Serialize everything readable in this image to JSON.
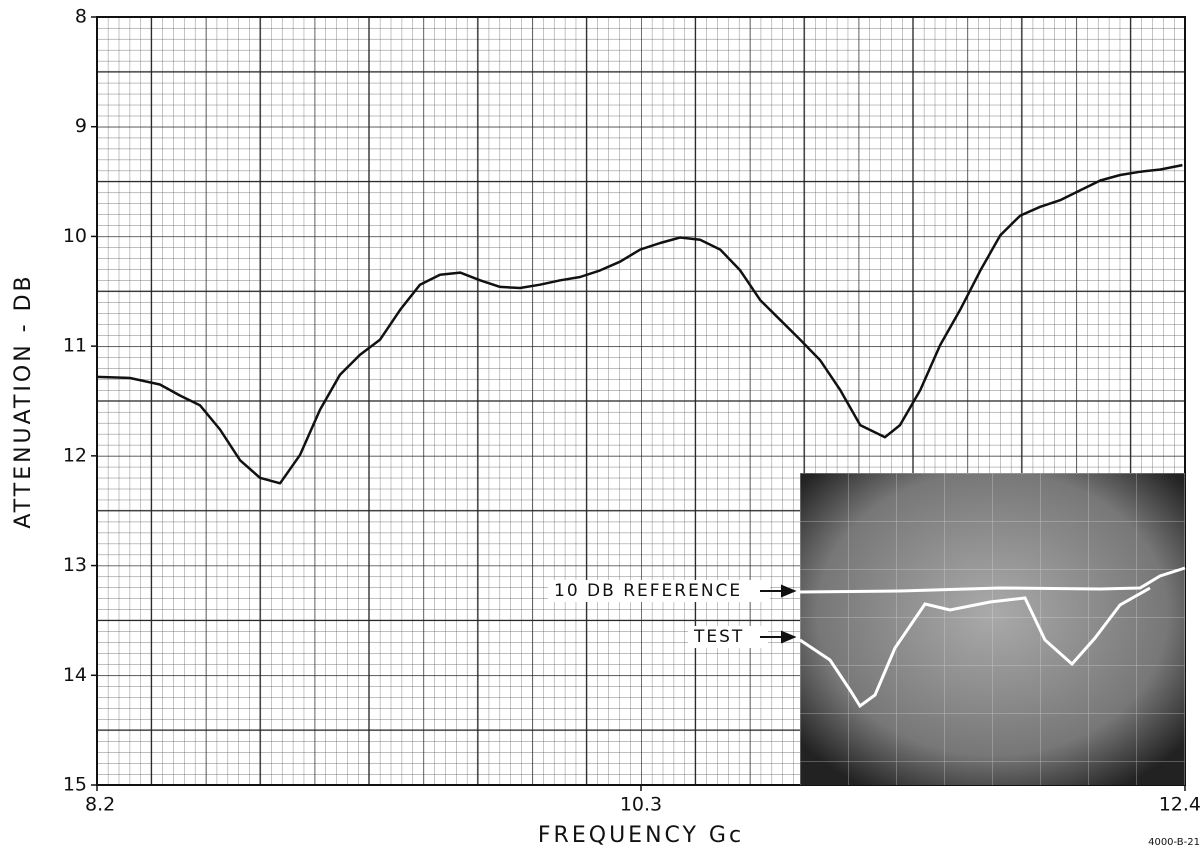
{
  "chart_data": {
    "type": "line",
    "xlabel": "FREQUENCY Gc",
    "ylabel": "ATTENUATION - DB",
    "x": [
      8.2,
      8.327,
      8.443,
      8.52,
      8.598,
      8.675,
      8.752,
      8.829,
      8.907,
      8.984,
      9.061,
      9.138,
      9.215,
      9.293,
      9.37,
      9.447,
      9.524,
      9.602,
      9.679,
      9.756,
      9.833,
      9.91,
      9.988,
      10.065,
      10.142,
      10.219,
      10.297,
      10.374,
      10.451,
      10.528,
      10.606,
      10.683,
      10.76,
      10.837,
      10.914,
      10.992,
      11.069,
      11.146,
      11.242,
      11.3,
      11.378,
      11.455,
      11.532,
      11.61,
      11.687,
      11.764,
      11.841,
      11.918,
      11.996,
      12.073,
      12.15,
      12.228,
      12.305,
      12.39
    ],
    "values": [
      11.28,
      11.29,
      11.35,
      11.45,
      11.54,
      11.76,
      12.04,
      12.2,
      12.25,
      11.99,
      11.58,
      11.26,
      11.08,
      10.94,
      10.67,
      10.44,
      10.35,
      10.33,
      10.4,
      10.46,
      10.47,
      10.44,
      10.4,
      10.37,
      10.31,
      10.23,
      10.12,
      10.06,
      10.01,
      10.03,
      10.12,
      10.31,
      10.58,
      10.76,
      10.94,
      11.13,
      11.4,
      11.72,
      11.83,
      11.72,
      11.4,
      10.99,
      10.67,
      10.31,
      9.99,
      9.81,
      9.73,
      9.67,
      9.58,
      9.49,
      9.44,
      9.41,
      9.39,
      9.35
    ],
    "color": "#111111",
    "xlim": [
      8.2,
      12.4
    ],
    "xticks": [
      8.2,
      10.3,
      12.4
    ],
    "ylim": [
      8,
      15
    ],
    "yticks": [
      8,
      9,
      10,
      11,
      12,
      13,
      14,
      15
    ],
    "y_reversed": true,
    "annotations": [
      "10 DB REFERENCE",
      "TEST"
    ],
    "figure_id": "4000-B-21"
  }
}
